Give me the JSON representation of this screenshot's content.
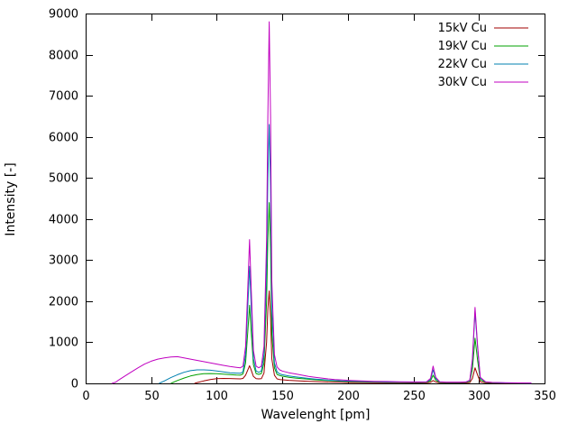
{
  "chart_data": {
    "type": "line",
    "title": "",
    "xlabel": "Wavelenght [pm]",
    "ylabel": "Intensity [-]",
    "xlim": [
      0,
      350
    ],
    "ylim": [
      0,
      9000
    ],
    "xticks": [
      0,
      50,
      100,
      150,
      200,
      250,
      300,
      350
    ],
    "yticks": [
      0,
      1000,
      2000,
      3000,
      4000,
      5000,
      6000,
      7000,
      8000,
      9000
    ],
    "grid": false,
    "legend_position": "top-right",
    "series": [
      {
        "name": "15kV Cu",
        "color": "#a00000",
        "points": [
          [
            83,
            0
          ],
          [
            85,
            20
          ],
          [
            90,
            60
          ],
          [
            95,
            95
          ],
          [
            100,
            115
          ],
          [
            105,
            120
          ],
          [
            110,
            118
          ],
          [
            115,
            112
          ],
          [
            118,
            110
          ],
          [
            120,
            120
          ],
          [
            122,
            200
          ],
          [
            124,
            350
          ],
          [
            125,
            430
          ],
          [
            126,
            350
          ],
          [
            128,
            170
          ],
          [
            130,
            115
          ],
          [
            132,
            110
          ],
          [
            134,
            115
          ],
          [
            136,
            250
          ],
          [
            138,
            1000
          ],
          [
            139,
            1800
          ],
          [
            140,
            2250
          ],
          [
            141,
            1600
          ],
          [
            142,
            600
          ],
          [
            144,
            200
          ],
          [
            146,
            110
          ],
          [
            148,
            95
          ],
          [
            150,
            88
          ],
          [
            155,
            75
          ],
          [
            160,
            65
          ],
          [
            165,
            57
          ],
          [
            170,
            50
          ],
          [
            175,
            44
          ],
          [
            180,
            39
          ],
          [
            185,
            34
          ],
          [
            190,
            30
          ],
          [
            195,
            26
          ],
          [
            200,
            23
          ],
          [
            210,
            19
          ],
          [
            220,
            16
          ],
          [
            230,
            14
          ],
          [
            240,
            13
          ],
          [
            250,
            12
          ],
          [
            255,
            12
          ],
          [
            260,
            13
          ],
          [
            263,
            25
          ],
          [
            265,
            70
          ],
          [
            267,
            35
          ],
          [
            270,
            13
          ],
          [
            275,
            10
          ],
          [
            280,
            10
          ],
          [
            285,
            10
          ],
          [
            290,
            12
          ],
          [
            293,
            20
          ],
          [
            295,
            120
          ],
          [
            297,
            380
          ],
          [
            299,
            200
          ],
          [
            301,
            40
          ],
          [
            305,
            14
          ],
          [
            310,
            8
          ],
          [
            320,
            5
          ],
          [
            330,
            4
          ],
          [
            340,
            3
          ]
        ]
      },
      {
        "name": "19kV Cu",
        "color": "#00a000",
        "points": [
          [
            65,
            0
          ],
          [
            70,
            70
          ],
          [
            75,
            130
          ],
          [
            80,
            180
          ],
          [
            85,
            215
          ],
          [
            90,
            235
          ],
          [
            95,
            240
          ],
          [
            100,
            235
          ],
          [
            105,
            225
          ],
          [
            110,
            215
          ],
          [
            115,
            205
          ],
          [
            118,
            200
          ],
          [
            120,
            230
          ],
          [
            122,
            500
          ],
          [
            124,
            1400
          ],
          [
            125,
            1900
          ],
          [
            126,
            1400
          ],
          [
            128,
            450
          ],
          [
            130,
            240
          ],
          [
            132,
            220
          ],
          [
            134,
            240
          ],
          [
            136,
            500
          ],
          [
            138,
            2000
          ],
          [
            139,
            3500
          ],
          [
            140,
            4400
          ],
          [
            141,
            3300
          ],
          [
            142,
            1200
          ],
          [
            144,
            380
          ],
          [
            146,
            220
          ],
          [
            148,
            190
          ],
          [
            150,
            175
          ],
          [
            155,
            150
          ],
          [
            160,
            130
          ],
          [
            165,
            115
          ],
          [
            170,
            100
          ],
          [
            175,
            88
          ],
          [
            180,
            77
          ],
          [
            185,
            67
          ],
          [
            190,
            59
          ],
          [
            195,
            52
          ],
          [
            200,
            46
          ],
          [
            210,
            38
          ],
          [
            220,
            32
          ],
          [
            230,
            28
          ],
          [
            240,
            25
          ],
          [
            250,
            23
          ],
          [
            255,
            23
          ],
          [
            260,
            26
          ],
          [
            263,
            60
          ],
          [
            265,
            200
          ],
          [
            267,
            80
          ],
          [
            270,
            25
          ],
          [
            275,
            20
          ],
          [
            280,
            20
          ],
          [
            285,
            20
          ],
          [
            290,
            24
          ],
          [
            293,
            50
          ],
          [
            295,
            350
          ],
          [
            297,
            1100
          ],
          [
            299,
            550
          ],
          [
            301,
            90
          ],
          [
            305,
            28
          ],
          [
            310,
            16
          ],
          [
            320,
            10
          ],
          [
            330,
            7
          ],
          [
            340,
            5
          ]
        ]
      },
      {
        "name": "22kV Cu",
        "color": "#0080b0",
        "points": [
          [
            56,
            0
          ],
          [
            60,
            60
          ],
          [
            65,
            140
          ],
          [
            70,
            210
          ],
          [
            75,
            270
          ],
          [
            80,
            310
          ],
          [
            85,
            330
          ],
          [
            90,
            330
          ],
          [
            95,
            320
          ],
          [
            100,
            300
          ],
          [
            105,
            280
          ],
          [
            110,
            260
          ],
          [
            115,
            250
          ],
          [
            118,
            245
          ],
          [
            120,
            280
          ],
          [
            122,
            700
          ],
          [
            124,
            2100
          ],
          [
            125,
            2850
          ],
          [
            126,
            2100
          ],
          [
            128,
            600
          ],
          [
            130,
            300
          ],
          [
            132,
            270
          ],
          [
            134,
            300
          ],
          [
            136,
            700
          ],
          [
            138,
            2800
          ],
          [
            139,
            5000
          ],
          [
            140,
            6300
          ],
          [
            141,
            4800
          ],
          [
            142,
            1800
          ],
          [
            144,
            500
          ],
          [
            146,
            280
          ],
          [
            148,
            230
          ],
          [
            150,
            210
          ],
          [
            155,
            180
          ],
          [
            160,
            160
          ],
          [
            165,
            140
          ],
          [
            170,
            120
          ],
          [
            175,
            105
          ],
          [
            180,
            92
          ],
          [
            185,
            80
          ],
          [
            190,
            70
          ],
          [
            195,
            62
          ],
          [
            200,
            55
          ],
          [
            210,
            45
          ],
          [
            220,
            38
          ],
          [
            230,
            33
          ],
          [
            240,
            30
          ],
          [
            250,
            28
          ],
          [
            255,
            28
          ],
          [
            260,
            32
          ],
          [
            263,
            90
          ],
          [
            265,
            330
          ],
          [
            267,
            120
          ],
          [
            270,
            32
          ],
          [
            275,
            25
          ],
          [
            280,
            25
          ],
          [
            285,
            25
          ],
          [
            290,
            30
          ],
          [
            293,
            70
          ],
          [
            295,
            550
          ],
          [
            297,
            1750
          ],
          [
            299,
            850
          ],
          [
            301,
            130
          ],
          [
            305,
            35
          ],
          [
            310,
            20
          ],
          [
            320,
            12
          ],
          [
            330,
            8
          ],
          [
            340,
            6
          ]
        ]
      },
      {
        "name": "30kV Cu",
        "color": "#c000c0",
        "points": [
          [
            20,
            0
          ],
          [
            23,
            30
          ],
          [
            25,
            80
          ],
          [
            30,
            180
          ],
          [
            35,
            280
          ],
          [
            40,
            380
          ],
          [
            45,
            470
          ],
          [
            50,
            540
          ],
          [
            55,
            590
          ],
          [
            60,
            620
          ],
          [
            65,
            640
          ],
          [
            70,
            650
          ],
          [
            75,
            620
          ],
          [
            80,
            590
          ],
          [
            85,
            560
          ],
          [
            90,
            530
          ],
          [
            95,
            500
          ],
          [
            100,
            470
          ],
          [
            105,
            440
          ],
          [
            110,
            410
          ],
          [
            115,
            390
          ],
          [
            118,
            380
          ],
          [
            120,
            420
          ],
          [
            122,
            900
          ],
          [
            124,
            2600
          ],
          [
            125,
            3500
          ],
          [
            126,
            2600
          ],
          [
            128,
            800
          ],
          [
            130,
            420
          ],
          [
            132,
            380
          ],
          [
            134,
            420
          ],
          [
            136,
            900
          ],
          [
            138,
            3500
          ],
          [
            139,
            6500
          ],
          [
            140,
            8800
          ],
          [
            141,
            6500
          ],
          [
            142,
            2500
          ],
          [
            144,
            700
          ],
          [
            146,
            400
          ],
          [
            148,
            330
          ],
          [
            150,
            300
          ],
          [
            155,
            260
          ],
          [
            160,
            230
          ],
          [
            165,
            200
          ],
          [
            170,
            170
          ],
          [
            175,
            150
          ],
          [
            180,
            130
          ],
          [
            185,
            110
          ],
          [
            190,
            95
          ],
          [
            195,
            85
          ],
          [
            200,
            75
          ],
          [
            210,
            60
          ],
          [
            220,
            50
          ],
          [
            230,
            45
          ],
          [
            240,
            40
          ],
          [
            250,
            35
          ],
          [
            255,
            35
          ],
          [
            260,
            40
          ],
          [
            263,
            120
          ],
          [
            265,
            420
          ],
          [
            267,
            150
          ],
          [
            270,
            40
          ],
          [
            275,
            30
          ],
          [
            280,
            30
          ],
          [
            285,
            30
          ],
          [
            290,
            35
          ],
          [
            293,
            80
          ],
          [
            295,
            600
          ],
          [
            297,
            1850
          ],
          [
            299,
            900
          ],
          [
            301,
            150
          ],
          [
            305,
            40
          ],
          [
            310,
            25
          ],
          [
            320,
            15
          ],
          [
            330,
            10
          ],
          [
            340,
            8
          ]
        ]
      }
    ]
  }
}
